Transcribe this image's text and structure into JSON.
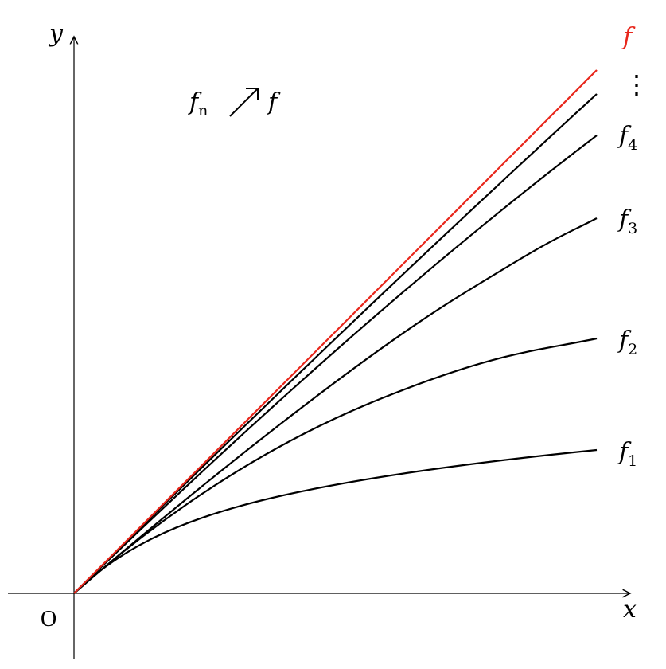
{
  "axes": {
    "x_label": "x",
    "y_label": "y",
    "origin_label": "O"
  },
  "annotation": {
    "left": "f",
    "left_sub": "n",
    "arrow": "↗",
    "right": "f"
  },
  "curves": [
    {
      "label": "f",
      "sub": "",
      "color": "#e8261b"
    },
    {
      "label": "⋮",
      "sub": "",
      "color": "#000000"
    },
    {
      "label": "f",
      "sub": "4",
      "color": "#000000"
    },
    {
      "label": "f",
      "sub": "3",
      "color": "#000000"
    },
    {
      "label": "f",
      "sub": "2",
      "color": "#000000"
    },
    {
      "label": "f",
      "sub": "1",
      "color": "#000000"
    }
  ]
}
